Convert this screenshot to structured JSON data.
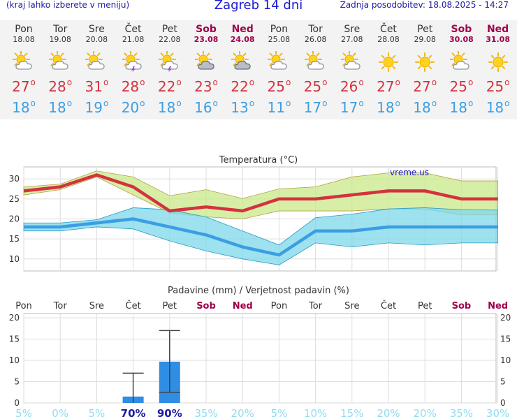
{
  "header": {
    "left_note": "(kraj lahko izberete v meniju)",
    "title": "Zagreb 14 dni",
    "updated": "Zadnja posodobitev: 18.08.2025 - 14:27"
  },
  "colors": {
    "max_line": "#d4323e",
    "min_line": "#3b9ee2",
    "max_band": "#c9e88a",
    "min_band": "#7dd7ea",
    "bar": "#2f8de4",
    "weekend": "#a0004a"
  },
  "days": [
    {
      "name": "Pon",
      "date": "18.08",
      "weekend": false,
      "icon": "sun-cloud-icon",
      "max": "27",
      "min": "18"
    },
    {
      "name": "Tor",
      "date": "19.08",
      "weekend": false,
      "icon": "sun-cloud-icon",
      "max": "28",
      "min": "18"
    },
    {
      "name": "Sre",
      "date": "20.08",
      "weekend": false,
      "icon": "sun-cloud-icon",
      "max": "31",
      "min": "19"
    },
    {
      "name": "Čet",
      "date": "21.08",
      "weekend": false,
      "icon": "sun-cloud-storm-icon",
      "max": "28",
      "min": "20"
    },
    {
      "name": "Pet",
      "date": "22.08",
      "weekend": false,
      "icon": "sun-cloud-storm-icon",
      "max": "22",
      "min": "18"
    },
    {
      "name": "Sob",
      "date": "23.08",
      "weekend": true,
      "icon": "sun-dark-cloud-icon",
      "max": "23",
      "min": "16"
    },
    {
      "name": "Ned",
      "date": "24.08",
      "weekend": true,
      "icon": "sun-dark-cloud-icon",
      "max": "22",
      "min": "13"
    },
    {
      "name": "Pon",
      "date": "25.08",
      "weekend": false,
      "icon": "sun-cloud-icon",
      "max": "25",
      "min": "11"
    },
    {
      "name": "Tor",
      "date": "26.08",
      "weekend": false,
      "icon": "sun-cloud-icon",
      "max": "25",
      "min": "17"
    },
    {
      "name": "Sre",
      "date": "27.08",
      "weekend": false,
      "icon": "sun-cloud-icon",
      "max": "26",
      "min": "17"
    },
    {
      "name": "Čet",
      "date": "28.08",
      "weekend": false,
      "icon": "sun-icon",
      "max": "27",
      "min": "18"
    },
    {
      "name": "Pet",
      "date": "29.08",
      "weekend": false,
      "icon": "sun-icon",
      "max": "27",
      "min": "18"
    },
    {
      "name": "Sob",
      "date": "30.08",
      "weekend": true,
      "icon": "sun-cloud-icon",
      "max": "25",
      "min": "18"
    },
    {
      "name": "Ned",
      "date": "31.08",
      "weekend": true,
      "icon": "sun-icon",
      "max": "25",
      "min": "18"
    }
  ],
  "chart_data": [
    {
      "type": "line",
      "title": "Temperatura (°C)",
      "watermark": "vreme.us",
      "categories": [
        "18.08",
        "19.08",
        "20.08",
        "21.08",
        "22.08",
        "23.08",
        "24.08",
        "25.08",
        "26.08",
        "27.08",
        "28.08",
        "29.08",
        "30.08",
        "31.08"
      ],
      "ylim": [
        7,
        33
      ],
      "yticks": [
        "10",
        "15",
        "20",
        "25",
        "30"
      ],
      "grid": true,
      "series": [
        {
          "values": [
            27,
            28,
            31,
            28,
            22,
            23,
            22,
            25,
            25,
            26,
            27,
            27,
            25,
            25
          ],
          "band_low": [
            26,
            27.3,
            30.5,
            26,
            21.5,
            20.5,
            20,
            22,
            22,
            22,
            22.5,
            22.5,
            21,
            21
          ],
          "band_high": [
            28,
            28.7,
            32,
            30.5,
            25.8,
            27.3,
            25.1,
            27.5,
            28,
            30.5,
            31.5,
            31.5,
            29.5,
            29.5
          ]
        },
        {
          "values": [
            18,
            18,
            19,
            20,
            18,
            16,
            13,
            11,
            17,
            17,
            18,
            18,
            18,
            18
          ],
          "band_low": [
            17,
            17,
            18,
            17.5,
            14.5,
            12,
            10,
            8.5,
            14,
            13,
            14,
            13.5,
            14,
            14
          ],
          "band_high": [
            19,
            19,
            19.8,
            22.8,
            22.3,
            20.5,
            17,
            13.5,
            20.3,
            21.2,
            22.5,
            22.8,
            22.3,
            22.2
          ]
        }
      ]
    },
    {
      "type": "bar",
      "title": "Padavine (mm) / Verjetnost padavin (%)",
      "categories": [
        "Pon",
        "Tor",
        "Sre",
        "Čet",
        "Pet",
        "Sob",
        "Ned",
        "Pon",
        "Tor",
        "Sre",
        "Čet",
        "Pet",
        "Sob",
        "Ned"
      ],
      "weekend": [
        false,
        false,
        false,
        false,
        false,
        true,
        true,
        false,
        false,
        false,
        false,
        false,
        true,
        true
      ],
      "ylim": [
        0,
        21
      ],
      "yticks": [
        "0",
        "5",
        "10",
        "15",
        "20"
      ],
      "values": [
        0,
        0,
        0,
        1.5,
        9.7,
        0,
        0,
        0,
        0,
        0,
        0,
        0,
        0,
        0
      ],
      "error_low": [
        0,
        0,
        0,
        0,
        2.5,
        0,
        0,
        0,
        0,
        0,
        0,
        0,
        0,
        0
      ],
      "error_high": [
        0,
        0,
        0,
        7,
        17,
        0,
        0,
        0,
        0,
        0,
        0,
        0,
        0,
        0
      ],
      "probabilities": [
        "5%",
        "0%",
        "5%",
        "70%",
        "90%",
        "35%",
        "20%",
        "5%",
        "10%",
        "15%",
        "20%",
        "20%",
        "35%",
        "30%"
      ],
      "probability_values": [
        5,
        0,
        5,
        70,
        90,
        35,
        20,
        5,
        10,
        15,
        20,
        20,
        35,
        30
      ]
    }
  ]
}
